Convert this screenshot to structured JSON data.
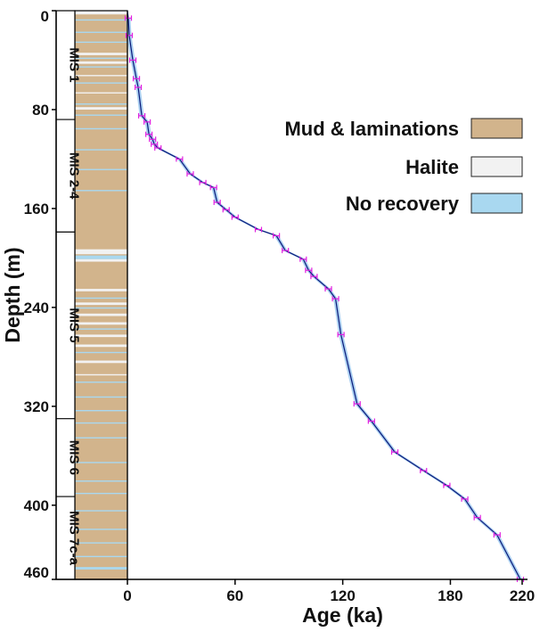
{
  "chart_data": {
    "type": "line",
    "xlabel": "Age (ka)",
    "ylabel": "Depth (m)",
    "xlim": [
      0,
      220
    ],
    "ylim": [
      0,
      460
    ],
    "x_ticks": [
      "0",
      "60",
      "120",
      "180",
      "220"
    ],
    "x_tick_values": [
      0,
      60,
      120,
      180,
      220
    ],
    "y_ticks": [
      "0",
      "80",
      "160",
      "240",
      "320",
      "400",
      "460"
    ],
    "y_tick_values": [
      0,
      80,
      160,
      240,
      320,
      400,
      460
    ],
    "y_inverted": true,
    "grid": false,
    "legend_position": "right",
    "legend": [
      {
        "label": "Mud & laminations",
        "color": "#d2b48c"
      },
      {
        "label": "Halite",
        "color": "#f2f2f2"
      },
      {
        "label": "No recovery",
        "color": "#a9d8f0"
      }
    ],
    "colors": {
      "line": "#0a1a7a",
      "uncertainty_band": "#9cc8ee",
      "marker": "#e020e0",
      "mud": "#d2b48c",
      "halite": "#f2f2f2",
      "no_recovery": "#a9d8f0"
    },
    "series": [
      {
        "x": [
          0.5,
          1,
          3,
          5,
          6,
          8,
          11,
          12,
          14,
          15,
          17,
          29,
          35,
          42,
          48,
          50,
          55,
          60,
          73,
          83,
          88,
          98,
          101,
          104,
          112,
          116,
          119,
          128,
          136,
          149,
          165,
          178,
          188,
          195,
          206,
          219
        ],
        "y": [
          6,
          20,
          40,
          55,
          62,
          85,
          90,
          100,
          104,
          108,
          111,
          120,
          132,
          139,
          143,
          155,
          161,
          167,
          177,
          182,
          194,
          201,
          210,
          215,
          225,
          233,
          262,
          318,
          332,
          357,
          372,
          384,
          395,
          410,
          424,
          460
        ]
      }
    ],
    "lithology": [
      {
        "type": "mud",
        "from": 0,
        "to": 460
      },
      {
        "type": "halite",
        "from": 0,
        "to": 3
      },
      {
        "type": "no_recovery",
        "from": 7,
        "to": 8
      },
      {
        "type": "no_recovery",
        "from": 17,
        "to": 18
      },
      {
        "type": "no_recovery",
        "from": 25,
        "to": 26
      },
      {
        "type": "halite",
        "from": 34,
        "to": 36
      },
      {
        "type": "no_recovery",
        "from": 38,
        "to": 39
      },
      {
        "type": "halite",
        "from": 41,
        "to": 43
      },
      {
        "type": "no_recovery",
        "from": 45,
        "to": 46
      },
      {
        "type": "halite",
        "from": 52,
        "to": 53
      },
      {
        "type": "no_recovery",
        "from": 58,
        "to": 59
      },
      {
        "type": "halite",
        "from": 66,
        "to": 67
      },
      {
        "type": "no_recovery",
        "from": 75,
        "to": 76
      },
      {
        "type": "halite",
        "from": 78,
        "to": 80
      },
      {
        "type": "no_recovery",
        "from": 84,
        "to": 85
      },
      {
        "type": "no_recovery",
        "from": 95,
        "to": 96
      },
      {
        "type": "no_recovery",
        "from": 112,
        "to": 113
      },
      {
        "type": "no_recovery",
        "from": 128,
        "to": 129
      },
      {
        "type": "no_recovery",
        "from": 145,
        "to": 146
      },
      {
        "type": "halite",
        "from": 193,
        "to": 197
      },
      {
        "type": "no_recovery",
        "from": 198,
        "to": 201
      },
      {
        "type": "halite",
        "from": 201,
        "to": 203
      },
      {
        "type": "halite",
        "from": 225,
        "to": 227
      },
      {
        "type": "no_recovery",
        "from": 232,
        "to": 233
      },
      {
        "type": "halite",
        "from": 236,
        "to": 238
      },
      {
        "type": "no_recovery",
        "from": 240,
        "to": 241
      },
      {
        "type": "halite",
        "from": 245,
        "to": 247
      },
      {
        "type": "halite",
        "from": 252,
        "to": 254
      },
      {
        "type": "no_recovery",
        "from": 257,
        "to": 258
      },
      {
        "type": "halite",
        "from": 262,
        "to": 264
      },
      {
        "type": "halite",
        "from": 270,
        "to": 272
      },
      {
        "type": "no_recovery",
        "from": 276,
        "to": 277
      },
      {
        "type": "halite",
        "from": 283,
        "to": 285
      },
      {
        "type": "halite",
        "from": 294,
        "to": 295
      },
      {
        "type": "no_recovery",
        "from": 300,
        "to": 301
      },
      {
        "type": "no_recovery",
        "from": 312,
        "to": 313
      },
      {
        "type": "no_recovery",
        "from": 323,
        "to": 324
      },
      {
        "type": "no_recovery",
        "from": 333,
        "to": 334
      },
      {
        "type": "no_recovery",
        "from": 345,
        "to": 346
      },
      {
        "type": "no_recovery",
        "from": 365,
        "to": 366
      },
      {
        "type": "no_recovery",
        "from": 380,
        "to": 381
      },
      {
        "type": "no_recovery",
        "from": 390,
        "to": 391
      },
      {
        "type": "no_recovery",
        "from": 404,
        "to": 405
      },
      {
        "type": "no_recovery",
        "from": 419,
        "to": 420
      },
      {
        "type": "no_recovery",
        "from": 430,
        "to": 431
      },
      {
        "type": "no_recovery",
        "from": 441,
        "to": 442
      },
      {
        "type": "no_recovery",
        "from": 450,
        "to": 452
      }
    ],
    "mis_stages": [
      {
        "label": "MIS 1",
        "from": 0,
        "to": 88
      },
      {
        "label": "MIS 2-4",
        "from": 88,
        "to": 179
      },
      {
        "label": "MIS 5",
        "from": 179,
        "to": 330
      },
      {
        "label": "MIS 6",
        "from": 330,
        "to": 393
      },
      {
        "label": "MIS 7c-a",
        "from": 393,
        "to": 460
      }
    ]
  }
}
